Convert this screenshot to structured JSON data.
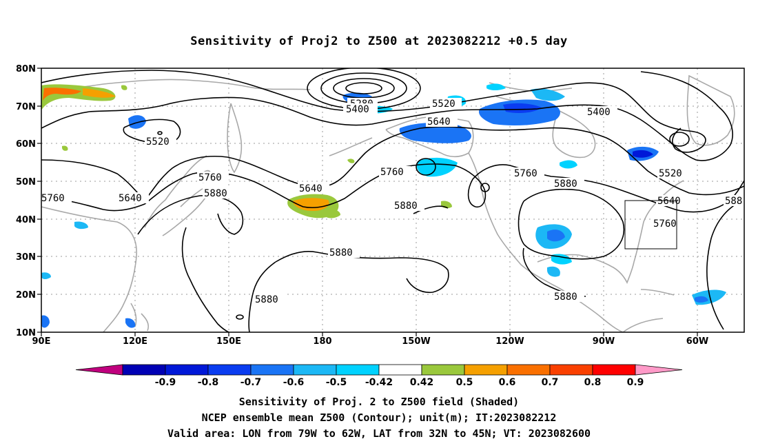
{
  "title": "Sensitivity of Proj2 to Z500 at 2023082212 +0.5 day",
  "lat_ticks": [
    "80N",
    "70N",
    "60N",
    "50N",
    "40N",
    "30N",
    "20N",
    "10N"
  ],
  "lon_ticks": [
    "90E",
    "120E",
    "150E",
    "180",
    "150W",
    "120W",
    "90W",
    "60W"
  ],
  "contour_labels": [
    {
      "text": "5280"
    },
    {
      "text": "5400"
    },
    {
      "text": "5520"
    },
    {
      "text": "5400"
    },
    {
      "text": "5520"
    },
    {
      "text": "5640"
    },
    {
      "text": "5760"
    },
    {
      "text": "5880"
    },
    {
      "text": "5640"
    },
    {
      "text": "5760"
    },
    {
      "text": "5640"
    },
    {
      "text": "5760"
    },
    {
      "text": "5880"
    },
    {
      "text": "5880"
    },
    {
      "text": "5760"
    },
    {
      "text": "5880"
    },
    {
      "text": "5520"
    },
    {
      "text": "5640"
    },
    {
      "text": "5760"
    },
    {
      "text": "588"
    },
    {
      "text": "5880"
    },
    {
      "text": "5880"
    }
  ],
  "colorbar": {
    "colors": [
      "#c0007e",
      "#0000b4",
      "#0018d8",
      "#0a3cf0",
      "#1a74f5",
      "#1cb8f5",
      "#00d2ff",
      "#ffffff",
      "#9ac83c",
      "#f5a000",
      "#fa7000",
      "#fa4000",
      "#ff0000",
      "#ff9ac8"
    ],
    "labels": [
      "-0.9",
      "-0.8",
      "-0.7",
      "-0.6",
      "-0.5",
      "-0.42",
      "0.42",
      "0.5",
      "0.6",
      "0.7",
      "0.8",
      "0.9"
    ]
  },
  "valid_area": {
    "lon_range": [
      "79W",
      "62W"
    ],
    "lat_range": [
      "32N",
      "45N"
    ]
  },
  "captions": [
    "Sensitivity of Proj. 2 to Z500 field (Shaded)",
    "NCEP ensemble mean Z500 (Contour); unit(m); IT:2023082212",
    "Valid area: LON from 79W to 62W, LAT from 32N to 45N; VT: 2023082600"
  ]
}
